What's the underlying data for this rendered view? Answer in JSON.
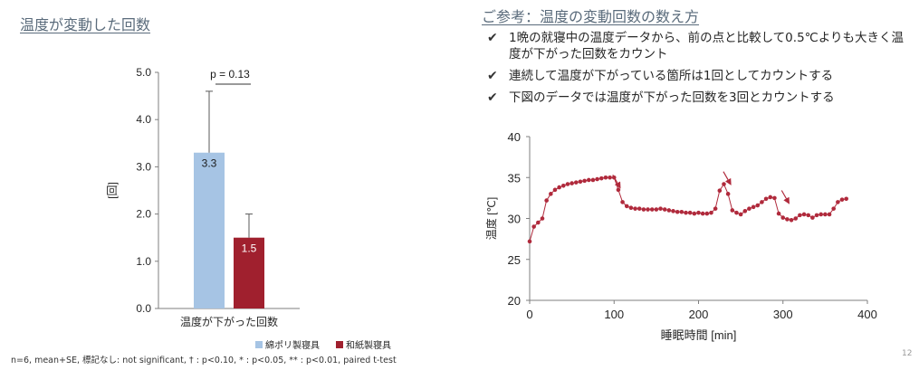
{
  "left": {
    "title": "温度が変動した回数",
    "footnote": "n=6, mean+SE, 標記なし: not significant, † : p<0.10, * : p<0.05, ** : p<0.01, paired t-test"
  },
  "right": {
    "title": "ご参考：温度の変動回数の数え方",
    "bullets": [
      "1晩の就寝中の温度データから、前の点と比較して0.5℃よりも大きく温度が下がった回数をカウント",
      "連続して温度が下がっている箇所は1回としてカウントする",
      "下図のデータでは温度が下がった回数を3回とカウントする"
    ]
  },
  "page_number": "12",
  "colors": {
    "series1": "#a6c4e4",
    "series2": "#a0202e",
    "line": "#b02a3c",
    "heading": "#5a6b7b"
  },
  "chart_data": [
    {
      "type": "bar",
      "categories": [
        "温度が下がった回数"
      ],
      "series": [
        {
          "name": "綿ポリ製寝具",
          "values": [
            3.3
          ],
          "error": [
            1.3
          ],
          "label": "3.3"
        },
        {
          "name": "和紙製寝具",
          "values": [
            1.5
          ],
          "error": [
            0.5
          ],
          "label": "1.5"
        }
      ],
      "ylabel": "[回]",
      "ylim": [
        0,
        5
      ],
      "yticks": [
        "0.0",
        "1.0",
        "2.0",
        "3.0",
        "4.0",
        "5.0"
      ],
      "annotation": "p = 0.13",
      "legend": "bottom"
    },
    {
      "type": "line",
      "xlabel": "睡眠時間 [min]",
      "ylabel": "温度 [℃]",
      "xlim": [
        0,
        400
      ],
      "ylim": [
        20,
        40
      ],
      "xticks": [
        "0",
        "100",
        "200",
        "300",
        "400"
      ],
      "yticks": [
        "20",
        "25",
        "30",
        "35",
        "40"
      ],
      "x": [
        0,
        5,
        10,
        15,
        20,
        25,
        30,
        35,
        40,
        45,
        50,
        55,
        60,
        65,
        70,
        75,
        80,
        85,
        90,
        95,
        100,
        105,
        110,
        115,
        120,
        125,
        130,
        135,
        140,
        145,
        150,
        155,
        160,
        165,
        170,
        175,
        180,
        185,
        190,
        195,
        200,
        205,
        210,
        215,
        220,
        225,
        230,
        235,
        240,
        245,
        250,
        255,
        260,
        265,
        270,
        275,
        280,
        285,
        290,
        295,
        300,
        305,
        310,
        315,
        320,
        325,
        330,
        335,
        340,
        345,
        350,
        355,
        360,
        365,
        370,
        375
      ],
      "values": [
        27.2,
        29,
        29.5,
        30,
        32.2,
        33,
        33.5,
        33.8,
        34,
        34.2,
        34.3,
        34.4,
        34.5,
        34.6,
        34.7,
        34.7,
        34.8,
        34.9,
        35,
        35,
        35,
        33.5,
        32,
        31.5,
        31.3,
        31.2,
        31.2,
        31.1,
        31.1,
        31.1,
        31.1,
        31.2,
        31.1,
        31,
        30.9,
        30.8,
        30.8,
        30.7,
        30.7,
        30.6,
        30.7,
        30.6,
        30.6,
        30.7,
        31.2,
        33.4,
        34.2,
        33,
        31,
        30.7,
        30.5,
        30.9,
        31.2,
        31.4,
        31.6,
        32,
        32.4,
        32.6,
        32.5,
        30.6,
        30.1,
        29.9,
        29.8,
        30,
        30.4,
        30.5,
        30.4,
        30.1,
        30.4,
        30.5,
        30.5,
        30.5,
        31.2,
        32,
        32.3,
        32.4
      ],
      "arrows_at_x": [
        107,
        238,
        307
      ]
    }
  ]
}
